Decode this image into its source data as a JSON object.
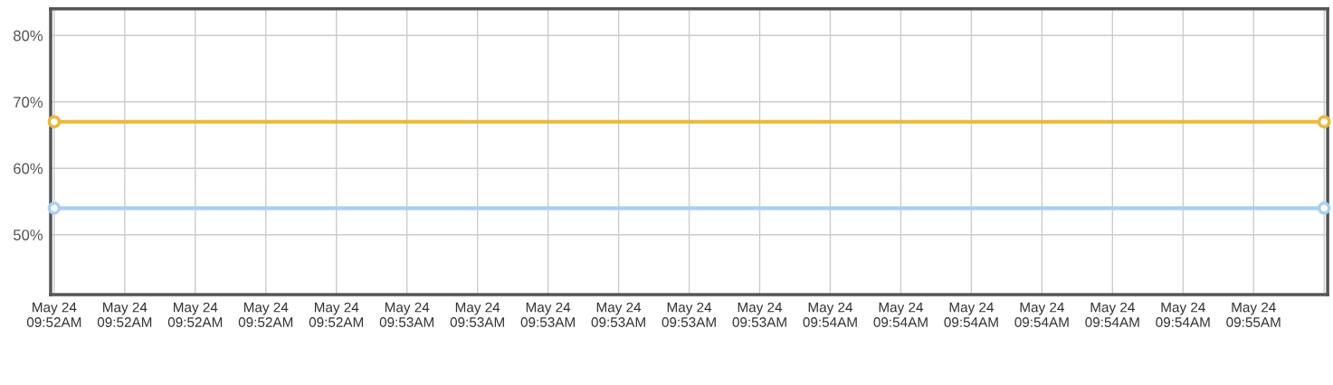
{
  "chart_data": {
    "type": "line",
    "categories": [
      "May 24\n09:52AM",
      "May 24\n09:52AM",
      "May 24\n09:52AM",
      "May 24\n09:52AM",
      "May 24\n09:52AM",
      "May 24\n09:53AM",
      "May 24\n09:53AM",
      "May 24\n09:53AM",
      "May 24\n09:53AM",
      "May 24\n09:53AM",
      "May 24\n09:53AM",
      "May 24\n09:54AM",
      "May 24\n09:54AM",
      "May 24\n09:54AM",
      "May 24\n09:54AM",
      "May 24\n09:54AM",
      "May 24\n09:54AM",
      "May 24\n09:55AM",
      null
    ],
    "series": [
      {
        "color": "#e9b93b",
        "values": [
          67,
          null,
          null,
          null,
          null,
          null,
          null,
          null,
          null,
          null,
          null,
          null,
          null,
          null,
          null,
          null,
          null,
          null,
          67
        ]
      },
      {
        "color": "#a8cff3",
        "values": [
          54,
          null,
          null,
          null,
          null,
          null,
          null,
          null,
          null,
          null,
          null,
          null,
          null,
          null,
          null,
          null,
          null,
          null,
          54
        ]
      }
    ],
    "ylim": [
      41,
      84
    ],
    "yticks": [
      {
        "value": 50,
        "label": "50%"
      },
      {
        "value": 60,
        "label": "60%"
      },
      {
        "value": 70,
        "label": "70%"
      },
      {
        "value": 80,
        "label": "80%"
      }
    ],
    "grid": true,
    "marker": "circle",
    "line_style": "solid"
  }
}
